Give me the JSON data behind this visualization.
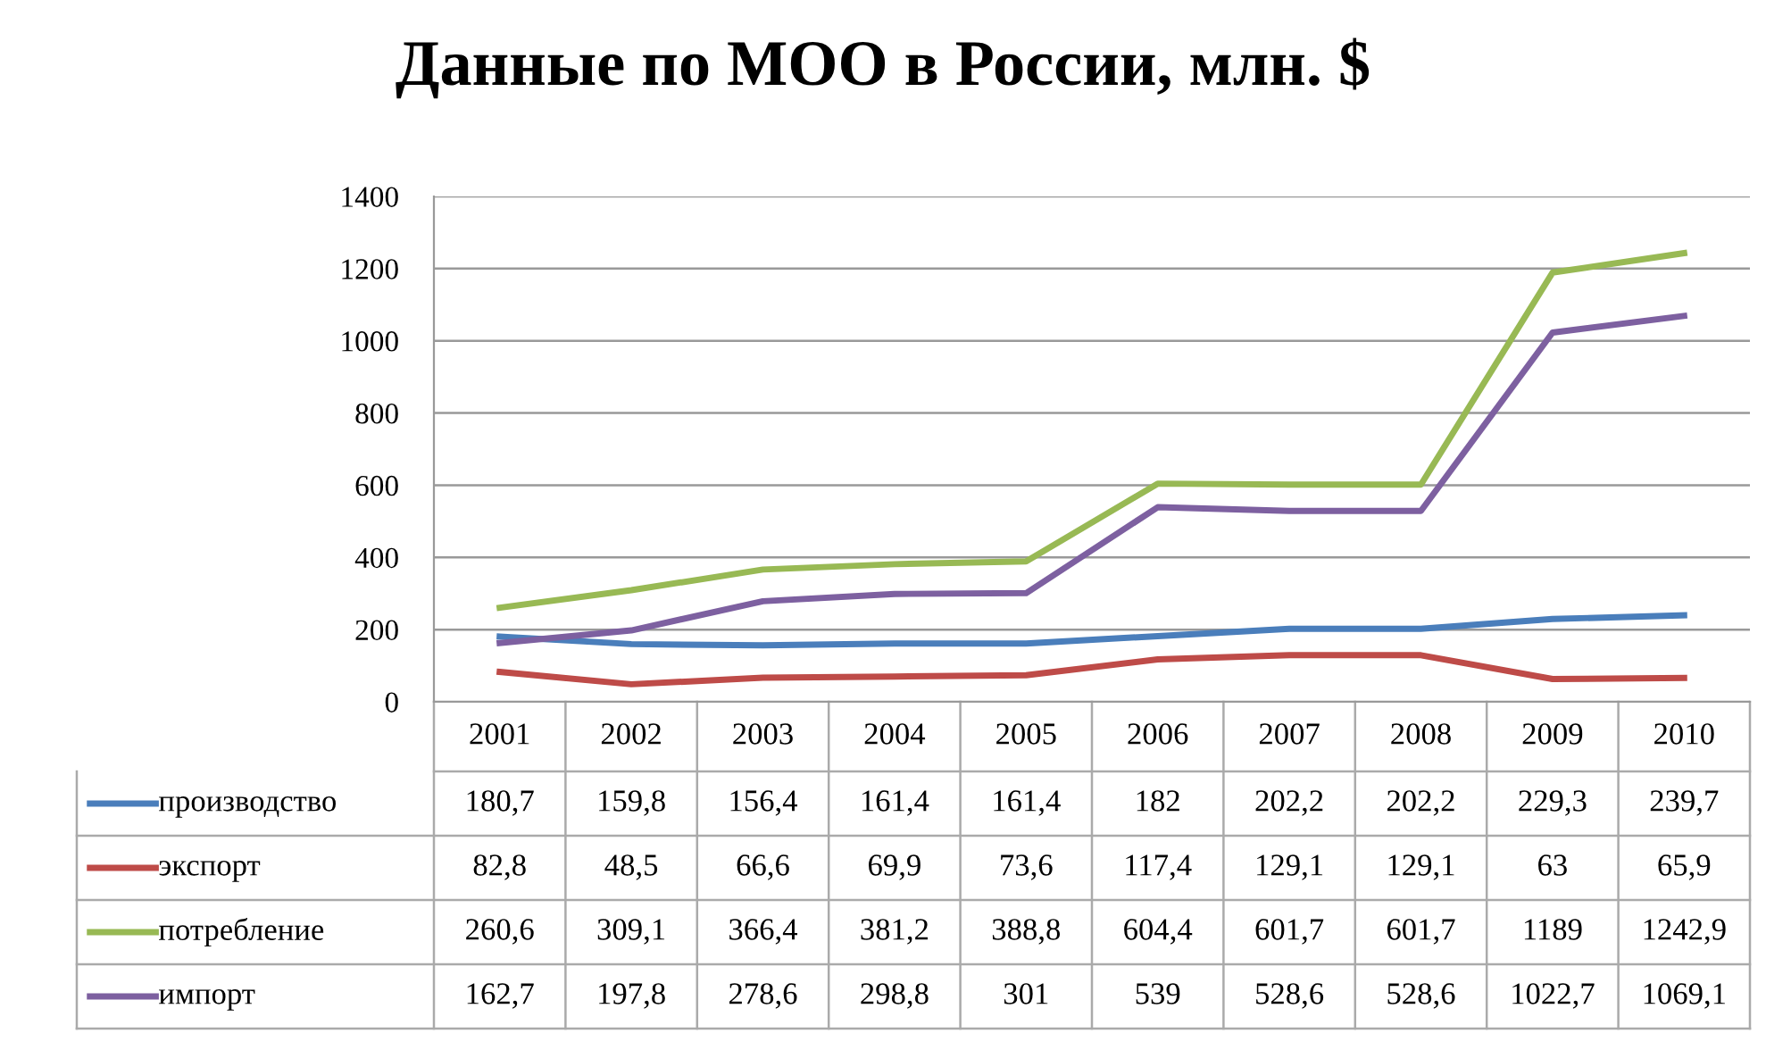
{
  "chart_data": {
    "type": "line",
    "title": "Данные по МОО в России, млн. $",
    "categories": [
      "2001",
      "2002",
      "2003",
      "2004",
      "2005",
      "2006",
      "2007",
      "2008",
      "2009",
      "2010"
    ],
    "series": [
      {
        "name": "производство",
        "color": "#4a7ebb",
        "values": [
          180.7,
          159.8,
          156.4,
          161.4,
          161.4,
          182,
          202.2,
          202.2,
          229.3,
          239.7
        ],
        "value_labels": [
          "180,7",
          "159,8",
          "156,4",
          "161,4",
          "161,4",
          "182",
          "202,2",
          "202,2",
          "229,3",
          "239,7"
        ]
      },
      {
        "name": "экспорт",
        "color": "#be4b48",
        "values": [
          82.8,
          48.5,
          66.6,
          69.9,
          73.6,
          117.4,
          129.1,
          129.1,
          63,
          65.9
        ],
        "value_labels": [
          "82,8",
          "48,5",
          "66,6",
          "69,9",
          "73,6",
          "117,4",
          "129,1",
          "129,1",
          "63",
          "65,9"
        ]
      },
      {
        "name": "потребление",
        "color": "#98b954",
        "values": [
          260.6,
          309.1,
          366.4,
          381.2,
          388.8,
          604.4,
          601.7,
          601.7,
          1189,
          1242.9
        ],
        "value_labels": [
          "260,6",
          "309,1",
          "366,4",
          "381,2",
          "388,8",
          "604,4",
          "601,7",
          "601,7",
          "1189",
          "1242,9"
        ]
      },
      {
        "name": "импорт",
        "color": "#7d60a0",
        "values": [
          162.7,
          197.8,
          278.6,
          298.8,
          301,
          539,
          528.6,
          528.6,
          1022.7,
          1069.1
        ],
        "value_labels": [
          "162,7",
          "197,8",
          "278,6",
          "298,8",
          "301",
          "539",
          "528,6",
          "528,6",
          "1022,7",
          "1069,1"
        ]
      }
    ],
    "ylim": [
      0,
      1400
    ],
    "yticks": [
      0,
      200,
      400,
      600,
      800,
      1000,
      1200,
      1400
    ],
    "grid": "y",
    "line_style": "solid",
    "legend": "bottom left"
  }
}
